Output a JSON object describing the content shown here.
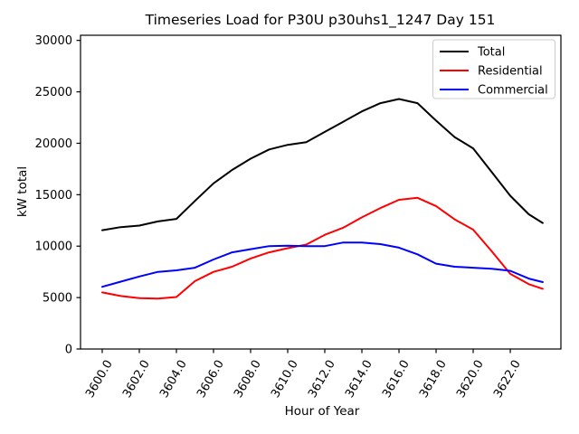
{
  "chart_data": {
    "type": "line",
    "title": "Timeseries Load for P30U p30uhs1_1247  Day 151",
    "xlabel": "Hour of Year",
    "ylabel": "kW total",
    "grid": false,
    "legend_position": "upper right",
    "background_color": "#ffffff",
    "xlim": [
      3598.83,
      3624.73
    ],
    "ylim": [
      0,
      30500
    ],
    "x_ticks": [
      3600,
      3602,
      3604,
      3606,
      3608,
      3610,
      3612,
      3614,
      3616,
      3618,
      3620,
      3622
    ],
    "x_tick_labels": [
      "3600.0",
      "3602.0",
      "3604.0",
      "3606.0",
      "3608.0",
      "3610.0",
      "3612.0",
      "3614.0",
      "3616.0",
      "3618.0",
      "3620.0",
      "3622.0"
    ],
    "x_tick_rotation_deg": 60,
    "y_ticks": [
      0,
      5000,
      10000,
      15000,
      20000,
      25000,
      30000
    ],
    "y_tick_labels": [
      "0",
      "5000",
      "10000",
      "15000",
      "20000",
      "25000",
      "30000"
    ],
    "x": [
      3600,
      3601,
      3602,
      3603,
      3604,
      3605,
      3606,
      3607,
      3608,
      3609,
      3610,
      3611,
      3612,
      3613,
      3614,
      3615,
      3616,
      3617,
      3618,
      3619,
      3620,
      3621,
      3622,
      3623,
      3623.75
    ],
    "series": [
      {
        "name": "Total",
        "color": "#000000",
        "values": [
          11550,
          11850,
          12000,
          12400,
          12650,
          14400,
          16100,
          17400,
          18500,
          19400,
          19850,
          20100,
          21100,
          22100,
          23100,
          23900,
          24300,
          23900,
          22200,
          20600,
          19500,
          17200,
          14900,
          13100,
          12250
        ]
      },
      {
        "name": "Residential",
        "color": "#ff0000",
        "values": [
          5500,
          5150,
          4950,
          4900,
          5050,
          6600,
          7500,
          8000,
          8800,
          9400,
          9800,
          10150,
          11100,
          11800,
          12800,
          13700,
          14500,
          14700,
          13900,
          12600,
          11600,
          9500,
          7300,
          6300,
          5850
        ]
      },
      {
        "name": "Commercial",
        "color": "#0000ff",
        "values": [
          6050,
          6550,
          7050,
          7500,
          7650,
          7900,
          8700,
          9400,
          9700,
          10000,
          10050,
          10000,
          10000,
          10350,
          10350,
          10200,
          9850,
          9200,
          8300,
          8000,
          7900,
          7800,
          7600,
          6850,
          6500
        ]
      }
    ],
    "legend_border_color": "#cccccc",
    "line_width": 2
  }
}
